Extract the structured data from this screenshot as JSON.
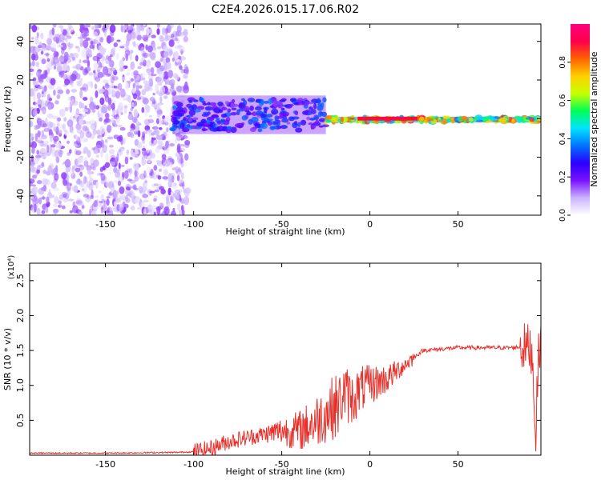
{
  "title": "C2E4.2026.015.17.06.R02",
  "colors": {
    "snr_line": "#e8302a",
    "colorbar_stops": [
      "#ffffff",
      "#c9b3ff",
      "#7a12ff",
      "#2a00ff",
      "#0073ff",
      "#00e3ff",
      "#00ff57",
      "#c8ff00",
      "#ffd000",
      "#ff6200",
      "#ff004a",
      "#ff0080"
    ]
  },
  "chart_data": [
    {
      "type": "heatmap",
      "xlabel": "Height of straight line (km)",
      "ylabel": "Frequency (Hz)",
      "xlim": [
        -193,
        97
      ],
      "ylim": [
        -50,
        49
      ],
      "xticks": [
        -150,
        -100,
        -50,
        0,
        50
      ],
      "yticks": [
        -40,
        -20,
        0,
        20,
        40
      ],
      "colorbar": {
        "label": "Normalized spectral amplitude",
        "range": [
          0,
          1
        ],
        "ticks": [
          "0.0",
          "0.2",
          "0.4",
          "0.6",
          "0.8"
        ]
      },
      "regions": [
        {
          "x_range": [
            -193,
            -103
          ],
          "freq_range": [
            -50,
            49
          ],
          "amplitude": 0.1,
          "pattern": "scattered noise"
        },
        {
          "x_range": [
            -112,
            -25
          ],
          "freq_range": [
            -8,
            12
          ],
          "amplitude": 0.25,
          "pattern": "band"
        },
        {
          "x_range": [
            -25,
            97
          ],
          "freq_range": [
            -2,
            1
          ],
          "amplitude": 0.6,
          "pattern": "band"
        },
        {
          "x_range": [
            -7,
            27
          ],
          "freq_range": [
            -1,
            1
          ],
          "amplitude": 0.9,
          "pattern": "peak"
        }
      ]
    },
    {
      "type": "line",
      "xlabel": "Height of straight line (km)",
      "ylabel": "SNR (10 * v/v)",
      "yscale_note": "(x10⁴)",
      "xlim": [
        -193,
        97
      ],
      "ylim": [
        0,
        2.75
      ],
      "xticks": [
        -150,
        -100,
        -50,
        0,
        50
      ],
      "yticks": [
        0.5,
        1.0,
        1.5,
        2.0,
        2.5
      ],
      "ytick_labels": [
        "0.5",
        "1.0",
        "1.5",
        "2.0",
        "2.5"
      ],
      "series": [
        {
          "x": [
            -193,
            -150,
            -110,
            -100,
            -90,
            -80,
            -70,
            -60,
            -50,
            -40,
            -30,
            -25,
            -20,
            -18,
            -15,
            -10,
            -5,
            0,
            5,
            10,
            15,
            20,
            25,
            30,
            40,
            50,
            60,
            70,
            80,
            85,
            90,
            92,
            94,
            96,
            97
          ],
          "y": [
            0.03,
            0.03,
            0.04,
            0.05,
            0.1,
            0.2,
            0.25,
            0.3,
            0.35,
            0.35,
            0.5,
            0.6,
            0.7,
            0.7,
            0.9,
            0.8,
            0.95,
            1.0,
            1.05,
            1.1,
            1.2,
            1.3,
            1.4,
            1.5,
            1.52,
            1.54,
            1.54,
            1.54,
            1.54,
            1.55,
            1.55,
            1.5,
            0.3,
            1.6,
            1.6
          ]
        }
      ]
    }
  ]
}
